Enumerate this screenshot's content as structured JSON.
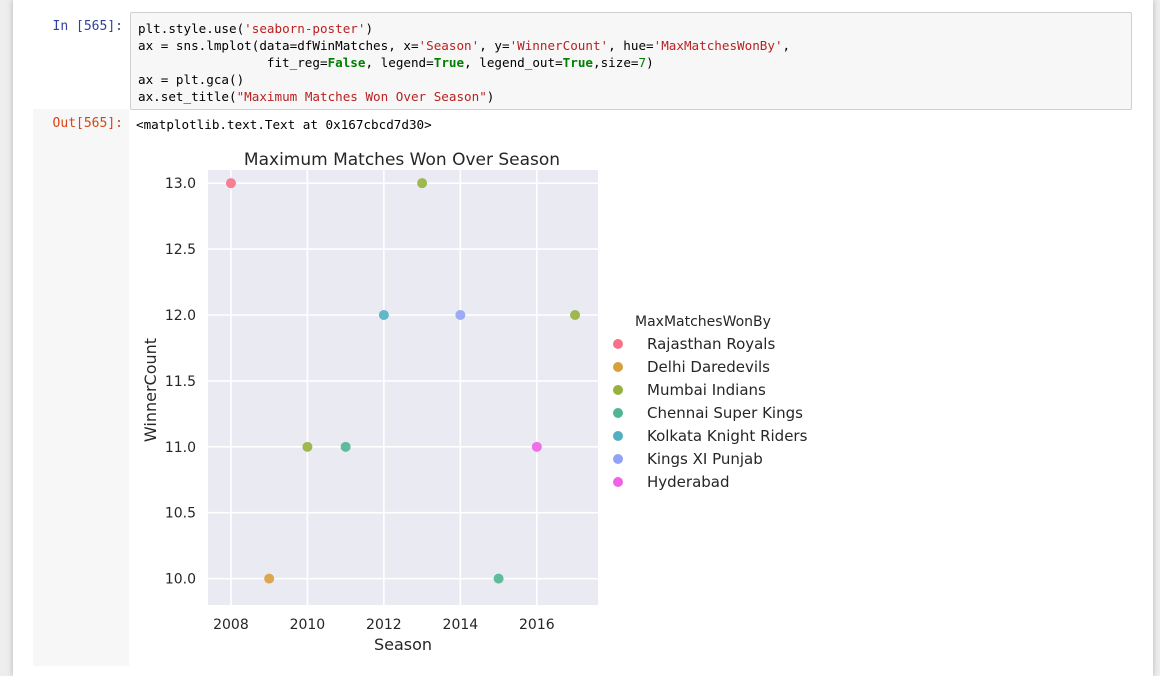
{
  "input_cell": {
    "prompt": "In [565]:",
    "lines": [
      [
        {
          "t": "plt.style.use("
        },
        {
          "t": "'seaborn-poster'",
          "c": "s"
        },
        {
          "t": ")"
        }
      ],
      [
        {
          "t": "ax = sns.lmplot(data=dfWinMatches, x="
        },
        {
          "t": "'Season'",
          "c": "s"
        },
        {
          "t": ", y="
        },
        {
          "t": "'WinnerCount'",
          "c": "s"
        },
        {
          "t": ", hue="
        },
        {
          "t": "'MaxMatchesWonBy'",
          "c": "s"
        },
        {
          "t": ","
        }
      ],
      [
        {
          "t": "                 fit_reg="
        },
        {
          "t": "False",
          "c": "k"
        },
        {
          "t": ", legend="
        },
        {
          "t": "True",
          "c": "k"
        },
        {
          "t": ", legend_out="
        },
        {
          "t": "True",
          "c": "k"
        },
        {
          "t": ",size="
        },
        {
          "t": "7",
          "c": "n"
        },
        {
          "t": ")"
        }
      ],
      [
        {
          "t": "ax = plt.gca()"
        }
      ],
      [
        {
          "t": "ax.set_title("
        },
        {
          "t": "\"Maximum Matches Won Over Season\"",
          "c": "s"
        },
        {
          "t": ")"
        }
      ]
    ]
  },
  "output_cell": {
    "prompt": "Out[565]:",
    "text": "<matplotlib.text.Text at 0x167cbcd7d30>"
  },
  "colors": {
    "plot_background": "#eaeaf2",
    "grid": "#ffffff",
    "in_prompt": "#303f9f",
    "out_prompt": "#d84315"
  },
  "chart_data": {
    "type": "scatter",
    "title": "Maximum Matches Won Over Season",
    "xlabel": "Season",
    "ylabel": "WinnerCount",
    "xlim": [
      2007.4,
      2017.6
    ],
    "ylim": [
      9.8,
      13.1
    ],
    "xticks": [
      2008,
      2010,
      2012,
      2014,
      2016
    ],
    "xtick_labels": [
      "2008",
      "2010",
      "2012",
      "2014",
      "2016"
    ],
    "yticks": [
      10.0,
      10.5,
      11.0,
      11.5,
      12.0,
      12.5,
      13.0
    ],
    "ytick_labels": [
      "10.0",
      "10.5",
      "11.0",
      "11.5",
      "12.0",
      "12.5",
      "13.0"
    ],
    "grid": true,
    "legend_title": "MaxMatchesWonBy",
    "legend_placement": "outside-right",
    "series": [
      {
        "name": "Rajasthan Royals",
        "color": "#f77189",
        "points": [
          [
            2008,
            13
          ]
        ]
      },
      {
        "name": "Delhi Daredevils",
        "color": "#d89f3e",
        "points": [
          [
            2009,
            10
          ]
        ]
      },
      {
        "name": "Mumbai Indians",
        "color": "#97b13d",
        "points": [
          [
            2010,
            11
          ],
          [
            2013,
            13
          ],
          [
            2017,
            12
          ]
        ]
      },
      {
        "name": "Chennai Super Kings",
        "color": "#50b691",
        "points": [
          [
            2011,
            11
          ],
          [
            2015,
            10
          ]
        ]
      },
      {
        "name": "Kolkata Knight Riders",
        "color": "#52b0c2",
        "points": [
          [
            2012,
            12
          ]
        ]
      },
      {
        "name": "Kings XI Punjab",
        "color": "#92a3f6",
        "points": [
          [
            2014,
            12
          ]
        ]
      },
      {
        "name": "Hyderabad",
        "color": "#f061e8",
        "points": [
          [
            2016,
            11
          ]
        ]
      }
    ]
  }
}
